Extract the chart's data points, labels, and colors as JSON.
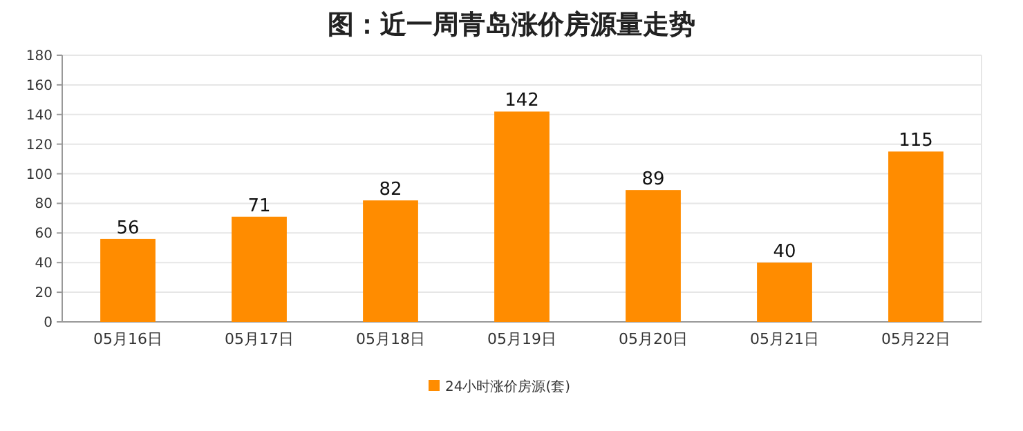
{
  "chart_data": {
    "type": "bar",
    "title": "图：近一周青岛涨价房源量走势",
    "categories": [
      "05月16日",
      "05月17日",
      "05月18日",
      "05月19日",
      "05月20日",
      "05月21日",
      "05月22日"
    ],
    "series": [
      {
        "name": "24小时涨价房源(套)",
        "color": "#ff8c00",
        "values": [
          56,
          71,
          82,
          142,
          89,
          40,
          115
        ]
      }
    ],
    "ylim": [
      0,
      180
    ],
    "yticks": [
      0,
      20,
      40,
      60,
      80,
      100,
      120,
      140,
      160,
      180
    ],
    "grid": "y",
    "legend": "bottom",
    "data_labels": true
  }
}
